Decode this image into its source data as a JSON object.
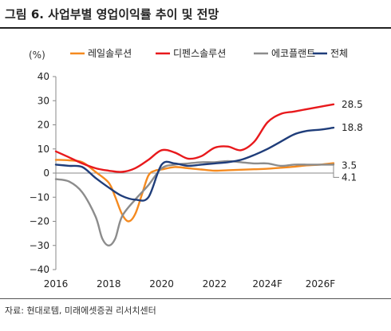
{
  "header": {
    "title": "그림 6. 사업부별 영업이익률 추이 및 전망"
  },
  "source": "자료: 현대로템, 미래에셋증권 리서치센터",
  "chart_data": {
    "type": "line",
    "unit_label": "(%)",
    "ylim": [
      -40,
      40
    ],
    "yticks": [
      40,
      30,
      20,
      10,
      0,
      -10,
      -20,
      -30,
      -40
    ],
    "xlim": [
      2016,
      2026.5
    ],
    "xticks": [
      {
        "x": 2016,
        "label": "2016"
      },
      {
        "x": 2018,
        "label": "2018"
      },
      {
        "x": 2020,
        "label": "2020"
      },
      {
        "x": 2022,
        "label": "2022"
      },
      {
        "x": 2024,
        "label": "2024F"
      },
      {
        "x": 2026,
        "label": "2026F"
      }
    ],
    "legend_position": "top",
    "series": [
      {
        "name": "레일솔루션",
        "color": "#F58A1F",
        "points": [
          [
            2016,
            5.5
          ],
          [
            2016.5,
            5.3
          ],
          [
            2017,
            4.5
          ],
          [
            2017.5,
            0.5
          ],
          [
            2018,
            -4
          ],
          [
            2018.25,
            -10
          ],
          [
            2018.5,
            -17
          ],
          [
            2018.75,
            -20
          ],
          [
            2019,
            -17
          ],
          [
            2019.25,
            -9
          ],
          [
            2019.5,
            -1
          ],
          [
            2019.75,
            1
          ],
          [
            2020,
            1.5
          ],
          [
            2020.5,
            2.5
          ],
          [
            2021,
            2
          ],
          [
            2021.5,
            1.5
          ],
          [
            2022,
            1
          ],
          [
            2022.5,
            1.2
          ],
          [
            2023,
            1.4
          ],
          [
            2023.5,
            1.6
          ],
          [
            2024,
            1.8
          ],
          [
            2024.5,
            2.2
          ],
          [
            2025,
            2.6
          ],
          [
            2025.5,
            3.2
          ],
          [
            2026,
            3.5
          ],
          [
            2026.5,
            4.1
          ]
        ]
      },
      {
        "name": "디펜스솔루션",
        "color": "#E8191C",
        "points": [
          [
            2016,
            9
          ],
          [
            2016.5,
            6.5
          ],
          [
            2017,
            4
          ],
          [
            2017.5,
            2
          ],
          [
            2018,
            1
          ],
          [
            2018.5,
            0.5
          ],
          [
            2019,
            2
          ],
          [
            2019.5,
            5.5
          ],
          [
            2020,
            9.5
          ],
          [
            2020.5,
            8.5
          ],
          [
            2021,
            6
          ],
          [
            2021.5,
            7
          ],
          [
            2022,
            10.5
          ],
          [
            2022.5,
            11
          ],
          [
            2023,
            9.5
          ],
          [
            2023.5,
            13
          ],
          [
            2024,
            21
          ],
          [
            2024.5,
            24.5
          ],
          [
            2025,
            25.5
          ],
          [
            2025.5,
            26.5
          ],
          [
            2026,
            27.5
          ],
          [
            2026.5,
            28.5
          ]
        ]
      },
      {
        "name": "에코플랜트",
        "color": "#8C8C8C",
        "points": [
          [
            2016,
            -2.5
          ],
          [
            2016.5,
            -3.5
          ],
          [
            2017,
            -8
          ],
          [
            2017.5,
            -18
          ],
          [
            2017.75,
            -27
          ],
          [
            2018,
            -30
          ],
          [
            2018.25,
            -27
          ],
          [
            2018.5,
            -18
          ],
          [
            2019,
            -11
          ],
          [
            2019.5,
            -5
          ],
          [
            2020,
            2
          ],
          [
            2020.5,
            3.5
          ],
          [
            2021,
            4
          ],
          [
            2021.5,
            4.5
          ],
          [
            2022,
            4.5
          ],
          [
            2022.5,
            5
          ],
          [
            2023,
            4.5
          ],
          [
            2023.5,
            4
          ],
          [
            2024,
            4
          ],
          [
            2024.5,
            3
          ],
          [
            2025,
            3.5
          ],
          [
            2025.5,
            3.5
          ],
          [
            2026,
            3.5
          ],
          [
            2026.5,
            3.5
          ]
        ]
      },
      {
        "name": "전체",
        "color": "#1F3D7A",
        "points": [
          [
            2016,
            3.5
          ],
          [
            2016.5,
            3
          ],
          [
            2017,
            2.5
          ],
          [
            2017.5,
            -2
          ],
          [
            2018,
            -6
          ],
          [
            2018.5,
            -9.5
          ],
          [
            2019,
            -11
          ],
          [
            2019.5,
            -10
          ],
          [
            2020,
            3.5
          ],
          [
            2020.5,
            4
          ],
          [
            2021,
            3
          ],
          [
            2021.5,
            3.5
          ],
          [
            2022,
            4
          ],
          [
            2022.5,
            4.5
          ],
          [
            2023,
            5.5
          ],
          [
            2023.5,
            7.5
          ],
          [
            2024,
            10
          ],
          [
            2024.5,
            13
          ],
          [
            2025,
            16
          ],
          [
            2025.5,
            17.5
          ],
          [
            2026,
            18
          ],
          [
            2026.5,
            18.8
          ]
        ]
      }
    ],
    "end_labels": [
      {
        "text": "28.5",
        "value": 28.5
      },
      {
        "text": "18.8",
        "value": 18.8
      },
      {
        "text": "3.5",
        "value": 3.5
      },
      {
        "text": "4.1",
        "value": 4.1
      }
    ]
  }
}
